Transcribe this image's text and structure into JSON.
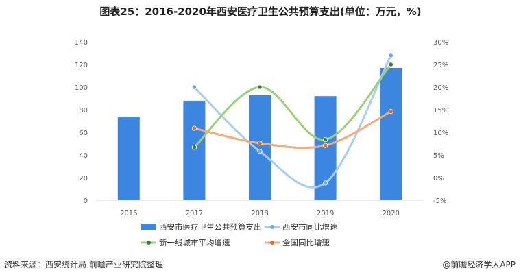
{
  "chart_data": {
    "type": "bar+line",
    "title": "图表25：2016-2020年西安医疗卫生公共预算支出(单位：万元，%)",
    "categories": [
      "2016",
      "2017",
      "2018",
      "2019",
      "2020"
    ],
    "y_left": {
      "min": 0,
      "max": 140,
      "step": 20,
      "ticks": [
        "0",
        "20",
        "40",
        "60",
        "80",
        "100",
        "120",
        "140"
      ]
    },
    "y_right": {
      "min": -5,
      "max": 30,
      "step": 5,
      "ticks": [
        "-5%",
        "0%",
        "5%",
        "10%",
        "15%",
        "20%",
        "25%",
        "30%"
      ]
    },
    "bars": {
      "name": "西安市医疗卫生公共预算支出",
      "color": "#3d86e0",
      "values": [
        74,
        88,
        93,
        92,
        117
      ]
    },
    "series": [
      {
        "name": "西安市同比增速",
        "color": "#a9cdf2",
        "marker": "#6aa8ec",
        "values": [
          null,
          20,
          5.8,
          -1.2,
          27
        ]
      },
      {
        "name": "新一线城市平均增速",
        "color": "#9bd07a",
        "marker": "#3e7a3a",
        "values": [
          null,
          6.7,
          20,
          8.4,
          25
        ]
      },
      {
        "name": "全国同比增速",
        "color": "#f5aa7a",
        "marker": "#e06a28",
        "values": [
          null,
          10.9,
          7.6,
          7.1,
          14.6
        ]
      }
    ],
    "legend_position": "bottom",
    "grid": false
  },
  "footer": {
    "source": "资料来源：西安统计局 前瞻产业研究院整理",
    "brand": "@前瞻经济学人APP"
  }
}
